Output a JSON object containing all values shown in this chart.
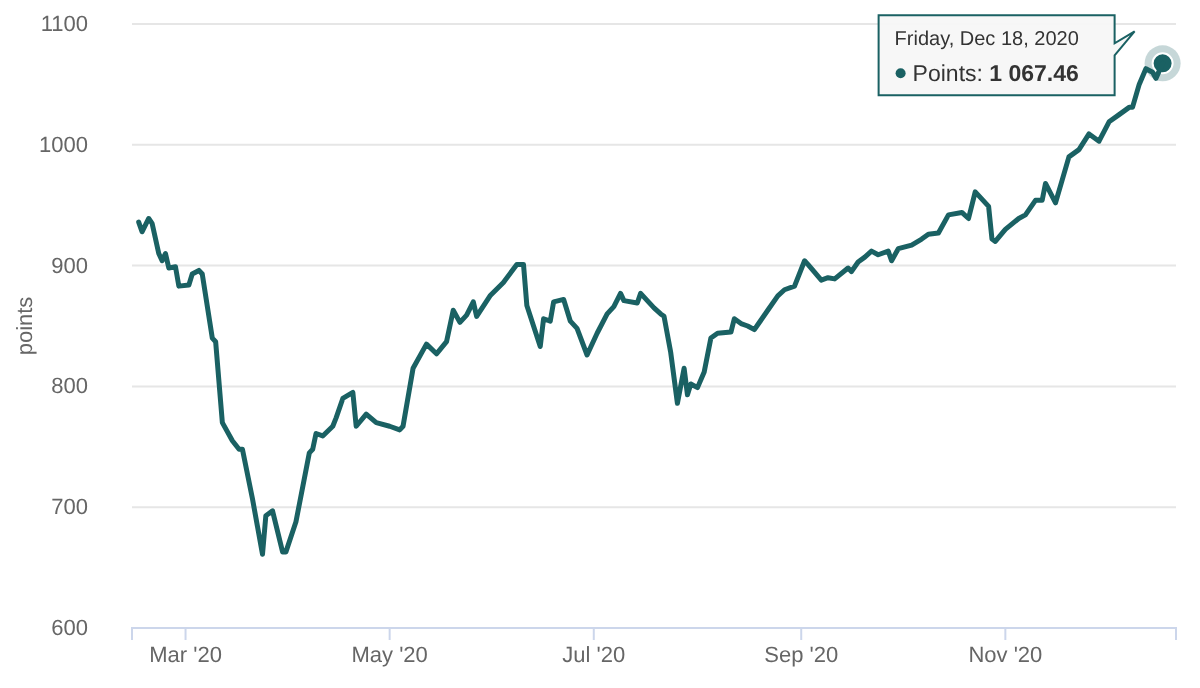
{
  "chart_data": {
    "type": "line",
    "ylabel": "points",
    "grid": "y",
    "marker": "none",
    "line_style": "solid",
    "xlim": [
      "2020-02-14",
      "2020-12-22"
    ],
    "ylim": [
      600,
      1100
    ],
    "yticks": [
      600,
      700,
      800,
      900,
      1000,
      1100
    ],
    "xticks": [
      {
        "value": "2020-03-01",
        "label": "Mar '20"
      },
      {
        "value": "2020-05-01",
        "label": "May '20"
      },
      {
        "value": "2020-07-01",
        "label": "Jul '20"
      },
      {
        "value": "2020-09-01",
        "label": "Sep '20"
      },
      {
        "value": "2020-11-01",
        "label": "Nov '20"
      }
    ],
    "x": [
      "2020-02-16",
      "2020-02-17",
      "2020-02-19",
      "2020-02-20",
      "2020-02-22",
      "2020-02-23",
      "2020-02-24",
      "2020-02-25",
      "2020-02-27",
      "2020-02-28",
      "2020-03-02",
      "2020-03-03",
      "2020-03-05",
      "2020-03-06",
      "2020-03-09",
      "2020-03-10",
      "2020-03-12",
      "2020-03-15",
      "2020-03-17",
      "2020-03-18",
      "2020-03-21",
      "2020-03-24",
      "2020-03-25",
      "2020-03-27",
      "2020-03-30",
      "2020-03-31",
      "2020-04-03",
      "2020-04-07",
      "2020-04-08",
      "2020-04-09",
      "2020-04-11",
      "2020-04-14",
      "2020-04-15",
      "2020-04-17",
      "2020-04-20",
      "2020-04-21",
      "2020-04-24",
      "2020-04-27",
      "2020-05-01",
      "2020-05-04",
      "2020-05-05",
      "2020-05-08",
      "2020-05-12",
      "2020-05-15",
      "2020-05-18",
      "2020-05-20",
      "2020-05-22",
      "2020-05-24",
      "2020-05-26",
      "2020-05-27",
      "2020-05-31",
      "2020-06-04",
      "2020-06-08",
      "2020-06-10",
      "2020-06-11",
      "2020-06-13",
      "2020-06-15",
      "2020-06-16",
      "2020-06-18",
      "2020-06-19",
      "2020-06-22",
      "2020-06-24",
      "2020-06-26",
      "2020-06-29",
      "2020-07-02",
      "2020-07-05",
      "2020-07-07",
      "2020-07-09",
      "2020-07-10",
      "2020-07-14",
      "2020-07-15",
      "2020-07-19",
      "2020-07-21",
      "2020-07-22",
      "2020-07-24",
      "2020-07-26",
      "2020-07-28",
      "2020-07-29",
      "2020-07-30",
      "2020-08-01",
      "2020-08-03",
      "2020-08-05",
      "2020-08-07",
      "2020-08-11",
      "2020-08-12",
      "2020-08-14",
      "2020-08-16",
      "2020-08-18",
      "2020-08-19",
      "2020-08-22",
      "2020-08-25",
      "2020-08-27",
      "2020-08-30",
      "2020-09-02",
      "2020-09-03",
      "2020-09-07",
      "2020-09-09",
      "2020-09-11",
      "2020-09-15",
      "2020-09-16",
      "2020-09-18",
      "2020-09-20",
      "2020-09-22",
      "2020-09-24",
      "2020-09-27",
      "2020-09-28",
      "2020-09-30",
      "2020-10-04",
      "2020-10-07",
      "2020-10-09",
      "2020-10-12",
      "2020-10-15",
      "2020-10-19",
      "2020-10-21",
      "2020-10-23",
      "2020-10-27",
      "2020-10-28",
      "2020-10-29",
      "2020-11-01",
      "2020-11-05",
      "2020-11-07",
      "2020-11-10",
      "2020-11-12",
      "2020-11-13",
      "2020-11-16",
      "2020-11-18",
      "2020-11-20",
      "2020-11-23",
      "2020-11-26",
      "2020-11-29",
      "2020-12-02",
      "2020-12-05",
      "2020-12-08",
      "2020-12-09",
      "2020-12-11",
      "2020-12-13",
      "2020-12-15",
      "2020-12-16",
      "2020-12-18"
    ],
    "series": [
      {
        "color": "#1a6163",
        "values": [
          936,
          928,
          939,
          935,
          910,
          904,
          910,
          898,
          899,
          883,
          884,
          893,
          896,
          893,
          840,
          837,
          770,
          755,
          748,
          748,
          707,
          661,
          693,
          697,
          663,
          663,
          688,
          745,
          748,
          761,
          759,
          767,
          774,
          790,
          795,
          767,
          777,
          770,
          767,
          764,
          767,
          815,
          835,
          827,
          837,
          863,
          853,
          859,
          870,
          858,
          875,
          886,
          901,
          901,
          867,
          850,
          833,
          856,
          854,
          870,
          872,
          854,
          848,
          826,
          844,
          860,
          866,
          877,
          871,
          869,
          877,
          865,
          860,
          858,
          828,
          786,
          815,
          793,
          802,
          799,
          812,
          840,
          844,
          845,
          856,
          852,
          850,
          847,
          851,
          863,
          875,
          880,
          883,
          904,
          901,
          888,
          890,
          889,
          898,
          895,
          903,
          907,
          912,
          909,
          912,
          904,
          914,
          917,
          922,
          926,
          927,
          942,
          944,
          939,
          961,
          949,
          922,
          920,
          930,
          939,
          942,
          954,
          954,
          968,
          952,
          971,
          990,
          996,
          1009,
          1003,
          1019,
          1025,
          1031,
          1031,
          1050,
          1063,
          1060,
          1055,
          1067.46
        ]
      }
    ],
    "annotations": [
      "Friday, Dec 18, 2020",
      "Points: 1 067.46"
    ]
  }
}
